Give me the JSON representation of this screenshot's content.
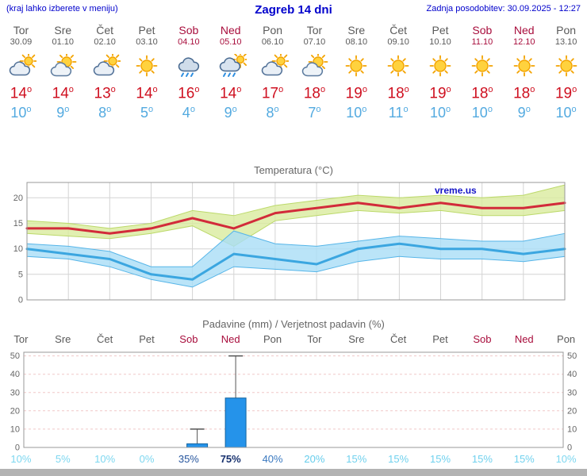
{
  "header": {
    "left_note": "(kraj lahko izberete v meniju)",
    "title": "Zagreb 14 dni",
    "updated": "Zadnja posodobitev: 30.09.2025 - 12:27"
  },
  "units": {
    "deg": "o"
  },
  "days": [
    {
      "name": "Tor",
      "date": "30.09",
      "weekend": false,
      "icon": "mostly-cloudy",
      "tmax": 14,
      "tmin": 10
    },
    {
      "name": "Sre",
      "date": "01.10",
      "weekend": false,
      "icon": "partly-cloudy",
      "tmax": 14,
      "tmin": 9
    },
    {
      "name": "Čet",
      "date": "02.10",
      "weekend": false,
      "icon": "mostly-cloudy",
      "tmax": 13,
      "tmin": 8
    },
    {
      "name": "Pet",
      "date": "03.10",
      "weekend": false,
      "icon": "sunny",
      "tmax": 14,
      "tmin": 5
    },
    {
      "name": "Sob",
      "date": "04.10",
      "weekend": true,
      "icon": "rain",
      "tmax": 16,
      "tmin": 4
    },
    {
      "name": "Ned",
      "date": "05.10",
      "weekend": true,
      "icon": "rain-sun",
      "tmax": 14,
      "tmin": 9
    },
    {
      "name": "Pon",
      "date": "06.10",
      "weekend": false,
      "icon": "mostly-cloudy",
      "tmax": 17,
      "tmin": 8
    },
    {
      "name": "Tor",
      "date": "07.10",
      "weekend": false,
      "icon": "partly-cloudy",
      "tmax": 18,
      "tmin": 7
    },
    {
      "name": "Sre",
      "date": "08.10",
      "weekend": false,
      "icon": "sunny",
      "tmax": 19,
      "tmin": 10
    },
    {
      "name": "Čet",
      "date": "09.10",
      "weekend": false,
      "icon": "sunny",
      "tmax": 18,
      "tmin": 11
    },
    {
      "name": "Pet",
      "date": "10.10",
      "weekend": false,
      "icon": "sunny",
      "tmax": 19,
      "tmin": 10
    },
    {
      "name": "Sob",
      "date": "11.10",
      "weekend": true,
      "icon": "sunny",
      "tmax": 18,
      "tmin": 10
    },
    {
      "name": "Ned",
      "date": "12.10",
      "weekend": true,
      "icon": "sunny",
      "tmax": 18,
      "tmin": 9
    },
    {
      "name": "Pon",
      "date": "13.10",
      "weekend": false,
      "icon": "sunny",
      "tmax": 19,
      "tmin": 10
    }
  ],
  "chart_data": [
    {
      "type": "line",
      "title": "Temperatura (°C)",
      "x": [
        "30.09",
        "01.10",
        "02.10",
        "03.10",
        "04.10",
        "05.10",
        "06.10",
        "07.10",
        "08.10",
        "09.10",
        "10.10",
        "11.10",
        "12.10",
        "13.10"
      ],
      "ylim": [
        0,
        23
      ],
      "yticks": [
        0,
        5,
        10,
        15,
        20
      ],
      "grid": true,
      "watermark": "vreme.us",
      "series": [
        {
          "name": "Najvišja temperatura",
          "color": "#d22b3a",
          "values": [
            14,
            14,
            13,
            14,
            16,
            14,
            17,
            18,
            19,
            18,
            19,
            18,
            18,
            19
          ]
        },
        {
          "name": "Najnižja temperatura",
          "color": "#3ba6e0",
          "values": [
            10,
            9,
            8,
            5,
            4,
            9,
            8,
            7,
            10,
            11,
            10,
            10,
            9,
            10
          ]
        }
      ],
      "bands": [
        {
          "name": "tmax-range",
          "fill": "#d9eb9e",
          "edge": "#bcd96a",
          "upper": [
            15.5,
            15,
            14,
            15,
            17.5,
            16.5,
            18.5,
            19.5,
            20.5,
            20,
            20.5,
            20,
            20.5,
            22.5
          ],
          "lower": [
            13,
            12.5,
            12,
            13,
            14.5,
            10.5,
            15.5,
            16.5,
            17.5,
            17,
            17.5,
            16.5,
            16.5,
            17.5
          ]
        },
        {
          "name": "tmin-range",
          "fill": "#a9ddf6",
          "edge": "#56b5e8",
          "upper": [
            11,
            10.5,
            9.5,
            6.5,
            6.5,
            13.5,
            11,
            10.5,
            11.5,
            12.5,
            12,
            11.5,
            11.5,
            13
          ],
          "lower": [
            8.5,
            8,
            6.5,
            4,
            2.5,
            6.5,
            6,
            5.5,
            7.5,
            8.5,
            8,
            8,
            7.5,
            8.5
          ]
        }
      ]
    },
    {
      "type": "bar",
      "title": "Padavine (mm) / Verjetnost padavin (%)",
      "categories": [
        "Tor",
        "Sre",
        "Čet",
        "Pet",
        "Sob",
        "Ned",
        "Pon",
        "Tor",
        "Sre",
        "Čet",
        "Pet",
        "Sob",
        "Ned",
        "Pon"
      ],
      "weekend_flags": [
        false,
        false,
        false,
        false,
        true,
        true,
        false,
        false,
        false,
        false,
        false,
        true,
        true,
        false
      ],
      "values": [
        0,
        0,
        0,
        0,
        2,
        27,
        0,
        0,
        0,
        0,
        0,
        0,
        0,
        0
      ],
      "whisker_max": [
        0,
        0,
        0,
        0,
        10,
        50,
        0,
        0,
        0,
        0,
        0,
        0,
        0,
        0
      ],
      "ylim": [
        0,
        52
      ],
      "yticks": [
        0,
        10,
        20,
        30,
        40,
        50
      ],
      "bar_color": "#2593ea",
      "bar_edge": "#14639f",
      "probabilities": [
        {
          "label": "10%",
          "color": "#7dd7f0",
          "bold": false
        },
        {
          "label": "5%",
          "color": "#7dd7f0",
          "bold": false
        },
        {
          "label": "10%",
          "color": "#7dd7f0",
          "bold": false
        },
        {
          "label": "0%",
          "color": "#7dd7f0",
          "bold": false
        },
        {
          "label": "35%",
          "color": "#27569e",
          "bold": false
        },
        {
          "label": "75%",
          "color": "#17316e",
          "bold": true
        },
        {
          "label": "40%",
          "color": "#3a79c0",
          "bold": false
        },
        {
          "label": "20%",
          "color": "#66cdec",
          "bold": false
        },
        {
          "label": "15%",
          "color": "#70d1ee",
          "bold": false
        },
        {
          "label": "15%",
          "color": "#70d1ee",
          "bold": false
        },
        {
          "label": "15%",
          "color": "#70d1ee",
          "bold": false
        },
        {
          "label": "15%",
          "color": "#70d1ee",
          "bold": false
        },
        {
          "label": "15%",
          "color": "#70d1ee",
          "bold": false
        },
        {
          "label": "10%",
          "color": "#7dd7f0",
          "bold": false
        }
      ]
    }
  ],
  "colors": {
    "header": "#0000cc",
    "weekday": "#5a5a5a",
    "weekend": "#a80d3c",
    "tmax": "#cf1020",
    "tmin": "#53aae0",
    "chart_title": "#666666",
    "axis": "#666666",
    "grid_temp": "#d4d4d4",
    "grid_precip": "#f0c8c8",
    "plot_border": "#999999",
    "watermark": "#1616c8",
    "footer": "#b3b3b3"
  }
}
